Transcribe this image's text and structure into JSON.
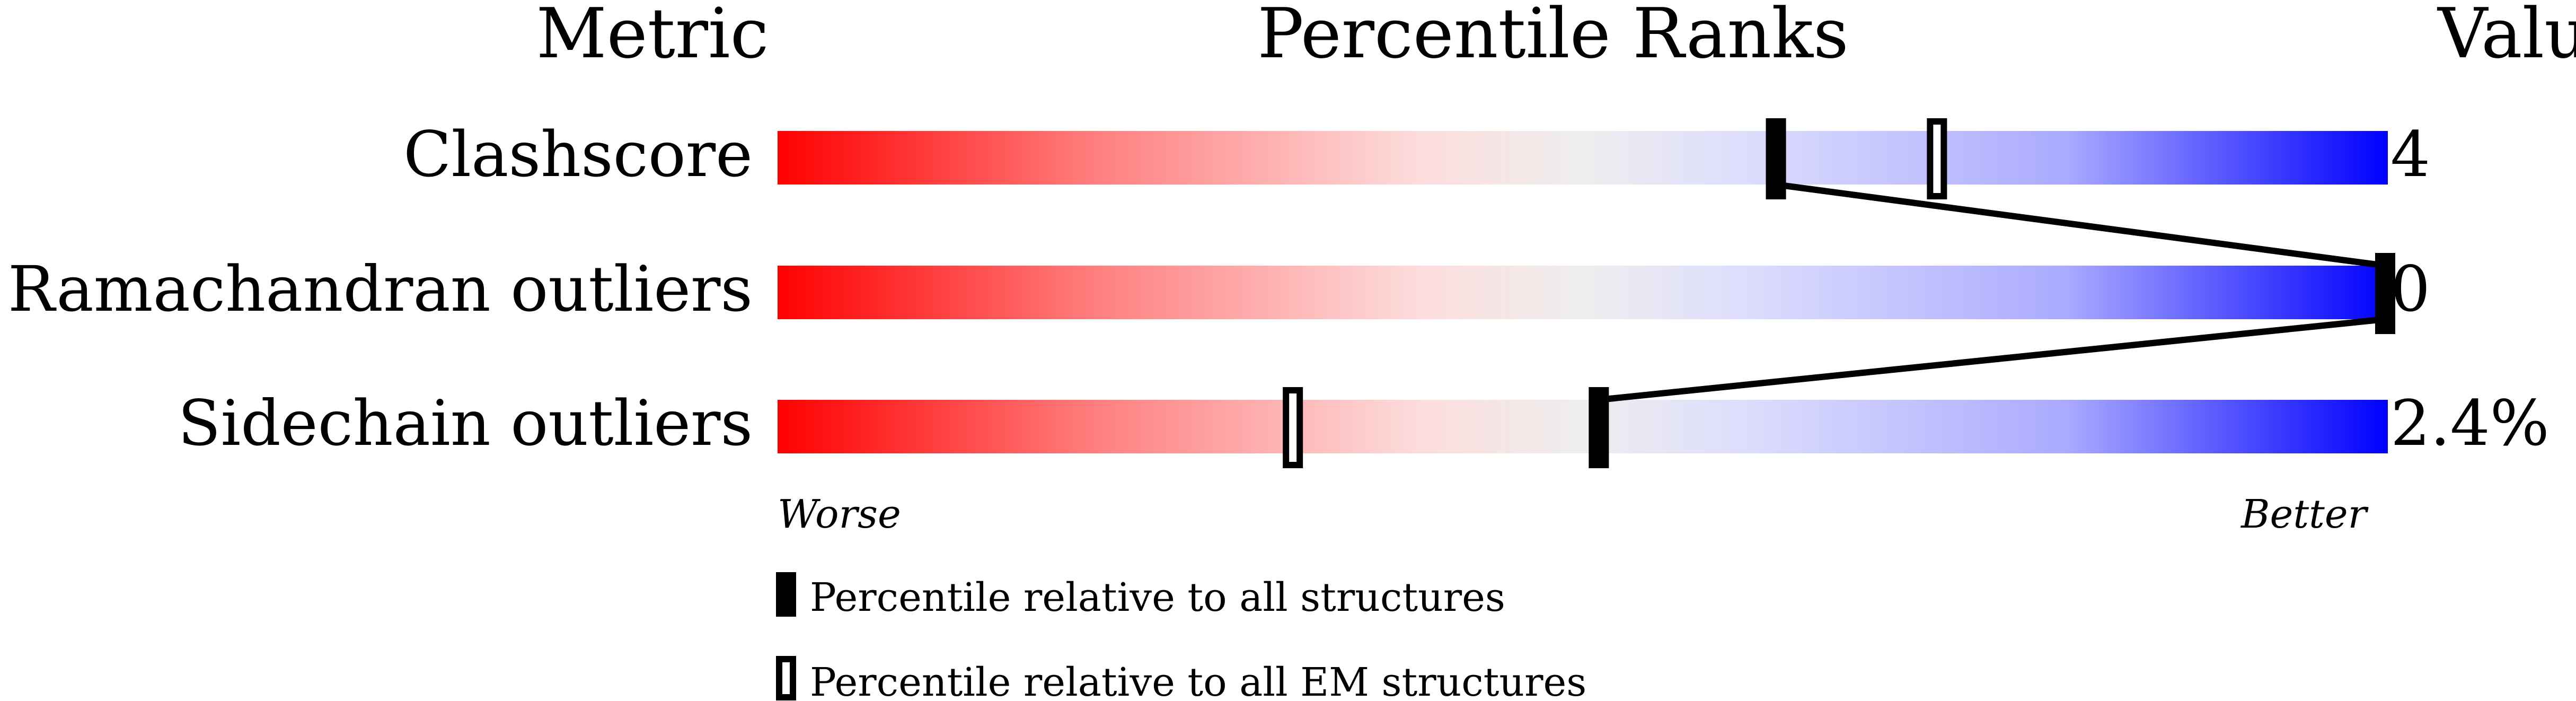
{
  "chart_data": {
    "type": "bar",
    "headers": {
      "metric": "Metric",
      "ranks": "Percentile Ranks",
      "value": "Value"
    },
    "xlim": [
      0,
      100
    ],
    "axis_left_label": "Worse",
    "axis_right_label": "Better",
    "gradient_colors": [
      "#ff0000",
      "#ff8080",
      "#fddddd",
      "#eeeeee",
      "#ddddfd",
      "#aaaaff",
      "#0000ff"
    ],
    "metrics": [
      {
        "name": "Clashscore",
        "value": "4",
        "percentile_all": 62,
        "percentile_em": 72
      },
      {
        "name": "Ramachandran outliers",
        "value": "0",
        "percentile_all": 100,
        "percentile_em": null
      },
      {
        "name": "Sidechain outliers",
        "value": "2.4%",
        "percentile_all": 51,
        "percentile_em": 32
      }
    ],
    "legend": [
      {
        "marker": "filled",
        "label": "Percentile relative to all structures"
      },
      {
        "marker": "open",
        "label": "Percentile relative to all EM structures"
      }
    ]
  }
}
